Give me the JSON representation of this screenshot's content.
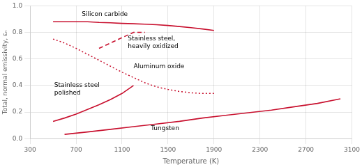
{
  "chart_data": {
    "type": "line",
    "xlabel": "Temperature (K)",
    "ylabel": "Total, normal emissivity, εₙ",
    "xlim": [
      300,
      3100
    ],
    "ylim": [
      0,
      1.0
    ],
    "xticks": [
      300,
      700,
      1100,
      1500,
      1900,
      2300,
      2700,
      3100
    ],
    "yticks": [
      {
        "value": 0,
        "label": "0.0"
      },
      0.2,
      0.4,
      0.6,
      0.8,
      {
        "value": 1.0,
        "label": "1.0"
      }
    ],
    "grid": true,
    "series": [
      {
        "color": "#c8102e",
        "line_style": "solid",
        "x": [
          500,
          600,
          700,
          800,
          900,
          1000,
          1100,
          1200,
          1300,
          1400,
          1500,
          1600,
          1700,
          1800,
          1900
        ],
        "values": [
          0.88,
          0.88,
          0.88,
          0.88,
          0.875,
          0.872,
          0.868,
          0.865,
          0.862,
          0.858,
          0.852,
          0.844,
          0.836,
          0.826,
          0.815
        ]
      },
      {
        "color": "#c8102e",
        "line_style": "dotted",
        "x": [
          500,
          600,
          700,
          800,
          900,
          1000,
          1100,
          1200,
          1300,
          1400,
          1500,
          1600,
          1700,
          1800,
          1900
        ],
        "values": [
          0.75,
          0.72,
          0.68,
          0.635,
          0.59,
          0.545,
          0.5,
          0.46,
          0.42,
          0.39,
          0.37,
          0.355,
          0.345,
          0.34,
          0.34
        ]
      },
      {
        "color": "#c8102e",
        "line_style": "dashed",
        "x": [
          900,
          1000,
          1100,
          1200,
          1300
        ],
        "values": [
          0.68,
          0.72,
          0.76,
          0.8,
          0.8
        ]
      },
      {
        "color": "#c8102e",
        "line_style": "solid",
        "x": [
          500,
          600,
          700,
          800,
          900,
          1000,
          1100,
          1200
        ],
        "values": [
          0.13,
          0.155,
          0.185,
          0.22,
          0.255,
          0.295,
          0.34,
          0.4
        ]
      },
      {
        "color": "#c8102e",
        "line_style": "solid",
        "x": [
          600,
          800,
          1000,
          1200,
          1400,
          1600,
          1800,
          2000,
          2200,
          2400,
          2600,
          2800,
          3000
        ],
        "values": [
          0.032,
          0.05,
          0.07,
          0.09,
          0.11,
          0.13,
          0.155,
          0.175,
          0.195,
          0.215,
          0.24,
          0.265,
          0.3
        ]
      }
    ],
    "annotations": [
      {
        "text": "Silicon carbide",
        "x": 750,
        "y": 0.91
      },
      {
        "text": "Aluminum oxide",
        "x": 1200,
        "y": 0.52
      },
      {
        "text": "Stainless steel,\nheavily oxidized",
        "x": 1150,
        "y": 0.67
      },
      {
        "text": "Stainless steel\npolished",
        "x": 510,
        "y": 0.32
      },
      {
        "text": "Tungsten",
        "x": 1350,
        "y": 0.055
      }
    ]
  }
}
